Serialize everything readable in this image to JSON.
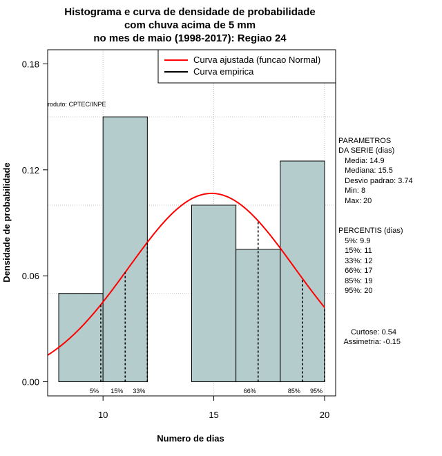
{
  "chart_data": {
    "type": "bar",
    "title_lines": [
      "Histograma e curva de densidade de probabilidade",
      "com chuva acima de 5 mm",
      "no mes de maio (1998-2017): Regiao 24"
    ],
    "xlabel": "Numero de dias",
    "ylabel": "Densidade de probabilidade",
    "xlim": [
      7.5,
      20.5
    ],
    "ylim": [
      -0.008,
      0.188
    ],
    "x_ticks": [
      10,
      15,
      20
    ],
    "y_ticks": [
      0.0,
      0.06,
      0.12,
      0.18
    ],
    "y_tick_labels": [
      "0.00",
      "0.06",
      "0.12",
      "0.18"
    ],
    "bins": [
      {
        "x0": 8,
        "x1": 10,
        "density": 0.05
      },
      {
        "x0": 10,
        "x1": 12,
        "density": 0.15
      },
      {
        "x0": 12,
        "x1": 14,
        "density": 0.0
      },
      {
        "x0": 14,
        "x1": 16,
        "density": 0.1
      },
      {
        "x0": 16,
        "x1": 18,
        "density": 0.075
      },
      {
        "x0": 18,
        "x1": 20,
        "density": 0.125
      }
    ],
    "normal_fit": {
      "mean": 14.9,
      "sd": 3.74
    },
    "percentile_lines": [
      {
        "label": "5%",
        "x": 9.9
      },
      {
        "label": "15%",
        "x": 11
      },
      {
        "label": "33%",
        "x": 12
      },
      {
        "label": "66%",
        "x": 17
      },
      {
        "label": "85%",
        "x": 19
      },
      {
        "label": "95%",
        "x": 20
      }
    ],
    "legend": [
      {
        "label": "Curva ajustada (funcao Normal)",
        "color": "#ff0000"
      },
      {
        "label": "Curva empirica",
        "color": "#000000"
      }
    ],
    "legend_position": "top-right",
    "product_note": "roduto: CPTEC/INPE",
    "colors": {
      "bar_fill": "#b4cccc",
      "curve": "#ff0000",
      "grid": "#b0b0b0"
    },
    "grid": true
  },
  "side_panel": {
    "parametros": [
      "PARAMETROS",
      "DA SERIE (dias)",
      "   Media: 14.9",
      "   Mediana: 15.5",
      "   Desvio padrao: 3.74",
      "   Min: 8",
      "   Max: 20"
    ],
    "percentis": [
      "PERCENTIS (dias)",
      "   5%: 9.9",
      "   15%: 11",
      "   33%: 12",
      "   66%: 17",
      "   85%: 19",
      "   95%: 20"
    ],
    "shape": [
      "Curtose: 0.54",
      "Assimetria: -0.15"
    ]
  }
}
